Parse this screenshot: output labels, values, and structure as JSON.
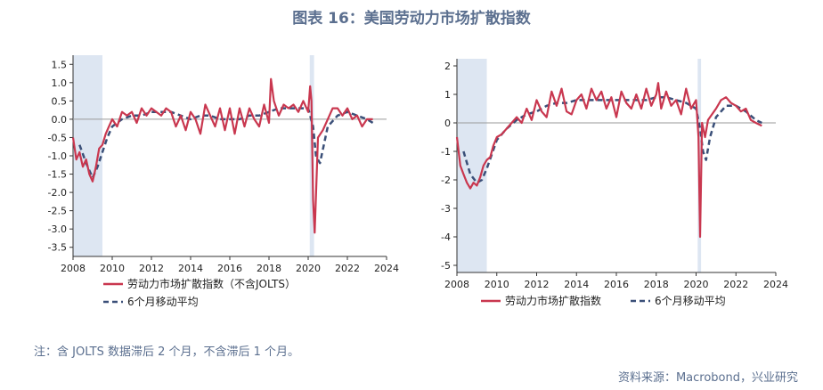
{
  "figure": {
    "title": "图表 16：美国劳动力市场扩散指数",
    "note": "注：含 JOLTS 数据滞后 2 个月，不含滞后 1 个月。",
    "source": "资料来源：Macrobond，兴业研究"
  },
  "colors": {
    "actual": "#c9374f",
    "ma": "#3a4f78",
    "shade": "#dde6f2",
    "text": "#5b6f8f"
  },
  "chart_data": [
    {
      "type": "line",
      "xlim": [
        2008,
        2024
      ],
      "ylim": [
        -3.75,
        1.75
      ],
      "x_ticks": [
        "2008",
        "2010",
        "2012",
        "2014",
        "2016",
        "2018",
        "2020",
        "2022",
        "2024"
      ],
      "y_ticks": [
        "1.5",
        "1.0",
        "0.5",
        "0.0",
        "-0.5",
        "-1.0",
        "-1.5",
        "-2.0",
        "-2.5",
        "-3.0",
        "-3.5"
      ],
      "recessions": [
        [
          2008.0,
          2009.5
        ],
        [
          2020.08,
          2020.3
        ]
      ],
      "legend": [
        "劳动力市场扩散指数（不含JOLTS）",
        "6个月移动平均"
      ],
      "series": [
        {
          "name": "劳动力市场扩散指数（不含JOLTS）",
          "style": "solid",
          "x": [
            2008.0,
            2008.17,
            2008.33,
            2008.5,
            2008.67,
            2008.83,
            2009.0,
            2009.17,
            2009.33,
            2009.5,
            2009.67,
            2009.83,
            2010.0,
            2010.25,
            2010.5,
            2010.75,
            2011.0,
            2011.25,
            2011.5,
            2011.75,
            2012.0,
            2012.25,
            2012.5,
            2012.75,
            2013.0,
            2013.25,
            2013.5,
            2013.75,
            2014.0,
            2014.25,
            2014.5,
            2014.75,
            2015.0,
            2015.25,
            2015.5,
            2015.75,
            2016.0,
            2016.25,
            2016.5,
            2016.75,
            2017.0,
            2017.25,
            2017.5,
            2017.75,
            2018.0,
            2018.1,
            2018.25,
            2018.5,
            2018.75,
            2019.0,
            2019.25,
            2019.5,
            2019.75,
            2020.0,
            2020.1,
            2020.17,
            2020.25,
            2020.33,
            2020.5,
            2020.75,
            2021.0,
            2021.25,
            2021.5,
            2021.75,
            2022.0,
            2022.25,
            2022.5,
            2022.75,
            2023.0,
            2023.3
          ],
          "y": [
            -0.5,
            -1.1,
            -0.9,
            -1.3,
            -1.1,
            -1.5,
            -1.7,
            -1.3,
            -0.8,
            -0.7,
            -0.4,
            -0.2,
            0.0,
            -0.2,
            0.2,
            0.1,
            0.2,
            -0.1,
            0.3,
            0.1,
            0.3,
            0.2,
            0.1,
            0.3,
            0.2,
            -0.2,
            0.1,
            -0.3,
            0.2,
            0.0,
            -0.4,
            0.4,
            0.1,
            -0.2,
            0.3,
            -0.3,
            0.3,
            -0.4,
            0.3,
            -0.2,
            0.3,
            0.0,
            -0.2,
            0.4,
            -0.1,
            1.1,
            0.5,
            0.1,
            0.4,
            0.3,
            0.4,
            0.2,
            0.5,
            0.2,
            0.9,
            0.5,
            -2.2,
            -3.1,
            -0.5,
            -0.3,
            0.0,
            0.3,
            0.3,
            0.1,
            0.3,
            0.0,
            0.1,
            -0.2,
            0.0,
            0.0
          ]
        },
        {
          "name": "6个月移动平均",
          "style": "dashed",
          "x": [
            2008.33,
            2008.67,
            2009.0,
            2009.25,
            2009.5,
            2009.75,
            2010.0,
            2010.5,
            2011.0,
            2011.5,
            2012.0,
            2012.5,
            2013.0,
            2013.5,
            2014.0,
            2014.5,
            2015.0,
            2015.5,
            2016.0,
            2016.5,
            2017.0,
            2017.5,
            2018.0,
            2018.5,
            2019.0,
            2019.5,
            2020.0,
            2020.25,
            2020.4,
            2020.6,
            2020.8,
            2021.0,
            2021.5,
            2022.0,
            2022.5,
            2023.0,
            2023.3
          ],
          "y": [
            -0.7,
            -1.2,
            -1.6,
            -1.3,
            -0.9,
            -0.5,
            -0.2,
            0.0,
            0.1,
            0.1,
            0.2,
            0.2,
            0.2,
            0.1,
            0.0,
            0.1,
            0.1,
            0.0,
            0.0,
            0.0,
            0.1,
            0.1,
            0.2,
            0.3,
            0.3,
            0.3,
            0.3,
            -0.2,
            -1.0,
            -1.2,
            -0.7,
            -0.2,
            0.1,
            0.2,
            0.1,
            0.0,
            -0.1
          ]
        }
      ]
    },
    {
      "type": "line",
      "xlim": [
        2008,
        2024
      ],
      "ylim": [
        -5.25,
        2.25
      ],
      "x_ticks": [
        "2008",
        "2010",
        "2012",
        "2014",
        "2016",
        "2018",
        "2020",
        "2022",
        "2024"
      ],
      "y_ticks": [
        "2",
        "1",
        "0",
        "-1",
        "-2",
        "-3",
        "-4",
        "-5"
      ],
      "recessions": [
        [
          2008.0,
          2009.5
        ],
        [
          2020.08,
          2020.25
        ]
      ],
      "legend": [
        "劳动力市场扩散指数",
        "6个月移动平均"
      ],
      "series": [
        {
          "name": "劳动力市场扩散指数",
          "style": "solid",
          "x": [
            2008.0,
            2008.17,
            2008.33,
            2008.5,
            2008.67,
            2008.83,
            2009.0,
            2009.17,
            2009.33,
            2009.5,
            2009.67,
            2009.83,
            2010.0,
            2010.25,
            2010.5,
            2010.75,
            2011.0,
            2011.25,
            2011.5,
            2011.75,
            2012.0,
            2012.25,
            2012.5,
            2012.75,
            2013.0,
            2013.25,
            2013.5,
            2013.75,
            2014.0,
            2014.25,
            2014.5,
            2014.75,
            2015.0,
            2015.25,
            2015.5,
            2015.75,
            2016.0,
            2016.25,
            2016.5,
            2016.75,
            2017.0,
            2017.25,
            2017.5,
            2017.75,
            2018.0,
            2018.1,
            2018.25,
            2018.5,
            2018.75,
            2019.0,
            2019.25,
            2019.5,
            2019.75,
            2020.0,
            2020.12,
            2020.2,
            2020.3,
            2020.45,
            2020.6,
            2020.8,
            2021.0,
            2021.25,
            2021.5,
            2021.75,
            2022.0,
            2022.25,
            2022.5,
            2022.75,
            2023.0,
            2023.3
          ],
          "y": [
            -0.5,
            -1.5,
            -1.8,
            -2.1,
            -2.3,
            -2.1,
            -2.2,
            -1.9,
            -1.5,
            -1.3,
            -1.2,
            -0.8,
            -0.5,
            -0.4,
            -0.2,
            0.0,
            0.2,
            0.0,
            0.5,
            0.1,
            0.8,
            0.4,
            0.2,
            1.1,
            0.6,
            1.2,
            0.4,
            0.3,
            0.8,
            1.0,
            0.5,
            1.2,
            0.8,
            1.1,
            0.5,
            0.9,
            0.2,
            1.1,
            0.7,
            0.5,
            1.0,
            0.5,
            1.2,
            0.6,
            1.0,
            1.4,
            0.5,
            1.1,
            0.6,
            0.8,
            0.3,
            1.2,
            0.5,
            0.8,
            -0.5,
            -4.0,
            0.0,
            -0.5,
            0.1,
            0.3,
            0.5,
            0.8,
            0.9,
            0.7,
            0.6,
            0.4,
            0.5,
            0.1,
            0.0,
            -0.1
          ]
        },
        {
          "name": "6个月移动平均",
          "style": "dashed",
          "x": [
            2008.33,
            2008.67,
            2009.0,
            2009.25,
            2009.5,
            2009.75,
            2010.0,
            2010.5,
            2011.0,
            2011.5,
            2012.0,
            2012.5,
            2013.0,
            2013.5,
            2014.0,
            2014.5,
            2015.0,
            2015.5,
            2016.0,
            2016.5,
            2017.0,
            2017.5,
            2018.0,
            2018.5,
            2019.0,
            2019.5,
            2020.0,
            2020.2,
            2020.35,
            2020.5,
            2020.7,
            2021.0,
            2021.5,
            2022.0,
            2022.5,
            2023.0,
            2023.3
          ],
          "y": [
            -1.0,
            -1.8,
            -2.1,
            -2.0,
            -1.6,
            -1.1,
            -0.6,
            -0.2,
            0.1,
            0.3,
            0.4,
            0.6,
            0.7,
            0.7,
            0.8,
            0.8,
            0.8,
            0.8,
            0.8,
            0.8,
            0.8,
            0.8,
            0.9,
            0.9,
            0.8,
            0.7,
            0.5,
            -0.2,
            -1.0,
            -1.3,
            -0.5,
            0.2,
            0.6,
            0.6,
            0.4,
            0.1,
            0.0
          ]
        }
      ]
    }
  ]
}
